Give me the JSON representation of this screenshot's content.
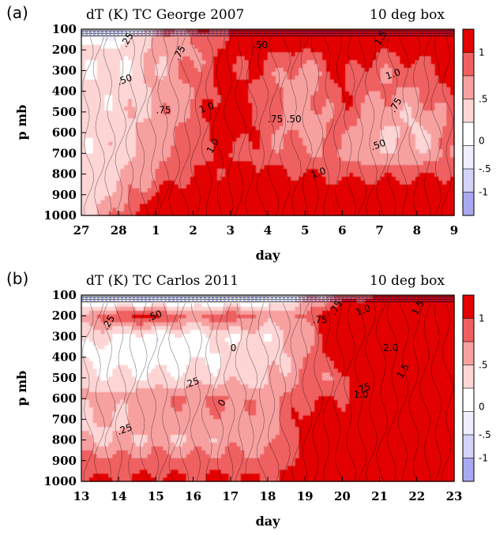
{
  "figure": {
    "palette": {
      "band_lt_-1": "#a9a9f0",
      "band_-1_-0.5": "#d3d3f7",
      "band_-0.5_0": "#eeeefc",
      "band_0_0.25": "#ffffff",
      "band_0.25_0.5": "#fdd5d5",
      "band_0.5_0.75": "#f7a0a0",
      "band_0.75_1": "#ef6060",
      "band_gt_1": "#e30000"
    }
  },
  "chart_data": [
    {
      "type": "heatmap",
      "panel_letter": "(a)",
      "title": "dT (K) TC George 2007",
      "subtitle_right": "10 deg box",
      "xlabel": "day",
      "ylabel": "p mb",
      "x_tick_labels": [
        "27",
        "28",
        "1",
        "2",
        "3",
        "4",
        "5",
        "6",
        "7",
        "8",
        "9"
      ],
      "y_tick_labels": [
        "100",
        "200",
        "300",
        "400",
        "500",
        "600",
        "700",
        "800",
        "900",
        "1000"
      ],
      "y_axis_inverted": true,
      "colorbar_labels": [
        "1",
        ".5",
        "0",
        "-.5",
        "-1"
      ],
      "contour_labels": [
        ".25",
        ".50",
        ".75",
        "1.0",
        "1.5"
      ],
      "x": [
        "27",
        "28",
        "1",
        "2",
        "3",
        "4",
        "5",
        "6",
        "7",
        "8",
        "9"
      ],
      "y": [
        100,
        200,
        300,
        400,
        500,
        600,
        700,
        800,
        900,
        1000
      ],
      "values_K": [
        [
          -0.4,
          -0.2,
          0.6,
          0.9,
          1.0,
          1.2,
          1.3,
          1.6,
          1.4,
          1.6,
          1.5
        ],
        [
          0.4,
          0.3,
          0.55,
          0.7,
          1.1,
          1.05,
          1.0,
          1.2,
          1.0,
          1.1,
          1.2
        ],
        [
          0.3,
          0.25,
          0.5,
          0.8,
          1.1,
          0.9,
          0.6,
          1.1,
          0.8,
          0.9,
          1.1
        ],
        [
          0.35,
          0.3,
          0.55,
          0.75,
          1.2,
          0.8,
          0.6,
          1.0,
          0.75,
          0.7,
          1.05
        ],
        [
          0.35,
          0.35,
          0.6,
          0.8,
          1.3,
          0.85,
          0.55,
          0.95,
          0.6,
          0.55,
          0.9
        ],
        [
          0.35,
          0.4,
          0.65,
          0.85,
          1.2,
          0.85,
          0.65,
          0.8,
          0.5,
          0.45,
          0.8
        ],
        [
          0.3,
          0.4,
          0.7,
          0.95,
          1.0,
          0.85,
          0.8,
          0.7,
          0.55,
          0.55,
          0.7
        ],
        [
          0.35,
          0.45,
          0.75,
          1.0,
          1.1,
          1.1,
          1.0,
          0.9,
          0.9,
          0.95,
          1.0
        ],
        [
          0.3,
          0.6,
          1.0,
          1.3,
          1.2,
          1.3,
          1.3,
          1.3,
          1.3,
          1.3,
          1.3
        ],
        [
          0.4,
          0.8,
          1.3,
          1.5,
          1.4,
          1.5,
          1.4,
          1.5,
          1.5,
          1.5,
          1.5
        ]
      ],
      "grid": false,
      "legend": "colorbar right"
    },
    {
      "type": "heatmap",
      "panel_letter": "(b)",
      "title": "dT (K) TC Carlos 2011",
      "subtitle_right": "10 deg box",
      "xlabel": "day",
      "ylabel": "p mb",
      "x_tick_labels": [
        "13",
        "14",
        "15",
        "16",
        "17",
        "18",
        "19",
        "20",
        "21",
        "22",
        "23"
      ],
      "y_tick_labels": [
        "100",
        "200",
        "300",
        "400",
        "500",
        "600",
        "700",
        "800",
        "900",
        "1000"
      ],
      "y_axis_inverted": true,
      "colorbar_labels": [
        "1",
        ".5",
        "0",
        "-.5",
        "-1"
      ],
      "contour_labels": [
        ".25",
        ".50",
        ".75",
        "0",
        "1.0",
        "1.5",
        "2.0"
      ],
      "x": [
        "13",
        "14",
        "15",
        "16",
        "17",
        "18",
        "19",
        "20",
        "21",
        "22",
        "23"
      ],
      "y": [
        100,
        200,
        300,
        400,
        500,
        600,
        700,
        800,
        900,
        1000
      ],
      "values_K": [
        [
          -0.6,
          -0.4,
          -0.5,
          -0.3,
          -0.4,
          -0.2,
          0.3,
          0.8,
          1.0,
          1.2,
          1.4
        ],
        [
          0.6,
          1.0,
          1.1,
          0.7,
          1.0,
          0.6,
          0.8,
          1.4,
          1.6,
          1.8,
          1.7
        ],
        [
          0.4,
          0.2,
          0.1,
          0.15,
          0.3,
          0.3,
          0.6,
          1.4,
          2.0,
          1.9,
          1.8
        ],
        [
          0.2,
          0.1,
          0.05,
          0.2,
          0.3,
          0.35,
          0.7,
          1.3,
          1.7,
          1.9,
          1.8
        ],
        [
          0.35,
          0.3,
          0.3,
          0.35,
          0.4,
          0.4,
          0.8,
          0.8,
          1.5,
          1.6,
          1.6
        ],
        [
          0.6,
          0.6,
          0.7,
          0.75,
          0.8,
          0.6,
          1.0,
          1.0,
          1.4,
          1.5,
          1.5
        ],
        [
          0.5,
          0.5,
          0.6,
          0.6,
          0.7,
          0.6,
          1.1,
          1.2,
          1.3,
          1.3,
          1.4
        ],
        [
          0.45,
          0.5,
          0.55,
          0.5,
          0.6,
          0.6,
          1.1,
          1.2,
          1.2,
          1.2,
          1.3
        ],
        [
          0.9,
          0.8,
          0.9,
          0.85,
          0.9,
          0.8,
          1.1,
          1.2,
          1.2,
          1.2,
          1.2
        ],
        [
          1.1,
          1.0,
          1.1,
          1.0,
          1.1,
          1.0,
          1.2,
          1.2,
          1.2,
          1.2,
          1.2
        ]
      ],
      "grid": false,
      "legend": "colorbar right"
    }
  ]
}
